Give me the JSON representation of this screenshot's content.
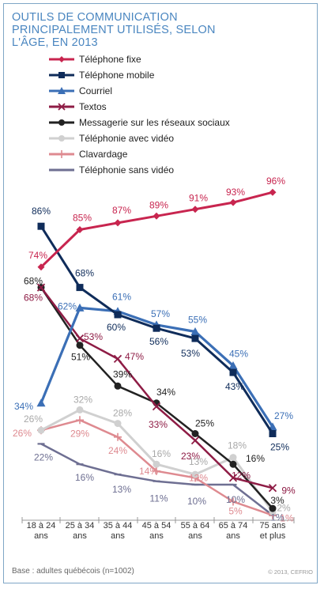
{
  "title_lines": [
    "OUTILS DE COMMUNICATION",
    "PRINCIPALEMENT UTILISÉS, SELON",
    "L'ÂGE, EN 2013"
  ],
  "footer": "Base : adultes québécois (n=1002)",
  "credit": "© 2013, CEFRIO",
  "chart_data": {
    "type": "line",
    "title": "OUTILS DE COMMUNICATION PRINCIPALEMENT UTILISÉS, SELON L'ÂGE, EN 2013",
    "xlabel": "",
    "ylabel": "",
    "ylim": [
      0,
      100
    ],
    "grid": false,
    "legend_position": "top-left",
    "categories": [
      [
        "18 à 24",
        "ans"
      ],
      [
        "25 à 34",
        "ans"
      ],
      [
        "35 à 44",
        "ans"
      ],
      [
        "45 à 54",
        "ans"
      ],
      [
        "55 à 64",
        "ans"
      ],
      [
        "65 à 74",
        "ans"
      ],
      [
        "75 ans",
        "et plus"
      ]
    ],
    "series": [
      {
        "name": "Téléphone fixe",
        "color": "#c8254f",
        "marker": "diamond",
        "values": [
          74,
          85,
          87,
          89,
          91,
          93,
          96
        ]
      },
      {
        "name": "Téléphone mobile",
        "color": "#0f2c5a",
        "marker": "square",
        "values": [
          86,
          68,
          60,
          56,
          53,
          43,
          25
        ]
      },
      {
        "name": "Courriel",
        "color": "#3b6fb6",
        "marker": "triangle",
        "values": [
          34,
          62,
          61,
          57,
          55,
          45,
          27
        ]
      },
      {
        "name": "Textos",
        "color": "#8e1c45",
        "marker": "x",
        "values": [
          68,
          53,
          47,
          33,
          23,
          12,
          9
        ]
      },
      {
        "name": "Messagerie sur les réseaux sociaux",
        "color": "#222222",
        "marker": "circle",
        "values": [
          68,
          51,
          39,
          34,
          25,
          16,
          3
        ]
      },
      {
        "name": "Téléphonie avec vidéo",
        "color": "#d0d0d0",
        "marker": "circle",
        "values": [
          26,
          32,
          28,
          16,
          13,
          18,
          2
        ]
      },
      {
        "name": "Clavardage",
        "color": "#de8a90",
        "marker": "plus",
        "values": [
          26,
          29,
          24,
          14,
          12,
          5,
          1
        ]
      },
      {
        "name": "Téléphonie sans vidéo",
        "color": "#6e6f92",
        "marker": "dash",
        "values": [
          22,
          16,
          13,
          11,
          10,
          10,
          1
        ]
      }
    ],
    "data_labels": [
      {
        "series": 0,
        "values": [
          "74%",
          "85%",
          "87%",
          "89%",
          "91%",
          "93%",
          "96%"
        ]
      },
      {
        "series": 1,
        "values": [
          "86%",
          "68%",
          "60%",
          "56%",
          "53%",
          "43%",
          "25%"
        ]
      },
      {
        "series": 2,
        "values": [
          "34%",
          "62%",
          "61%",
          "57%",
          "55%",
          "45%",
          "27%"
        ]
      },
      {
        "series": 3,
        "values": [
          "68%",
          "53%",
          "47%",
          "33%",
          "23%",
          "12%",
          "9%"
        ]
      },
      {
        "series": 4,
        "values": [
          "68%",
          "51%",
          "39%",
          "34%",
          "25%",
          "16%",
          "3%"
        ]
      },
      {
        "series": 5,
        "values": [
          "26%",
          "32%",
          "28%",
          "16%",
          "13%",
          "18%",
          "2%"
        ]
      },
      {
        "series": 6,
        "values": [
          "26%",
          "29%",
          "24%",
          "14%",
          "12%",
          "5%",
          "1%"
        ]
      },
      {
        "series": 7,
        "values": [
          "22%",
          "16%",
          "13%",
          "11%",
          "10%",
          "10%",
          "1%"
        ]
      }
    ]
  }
}
